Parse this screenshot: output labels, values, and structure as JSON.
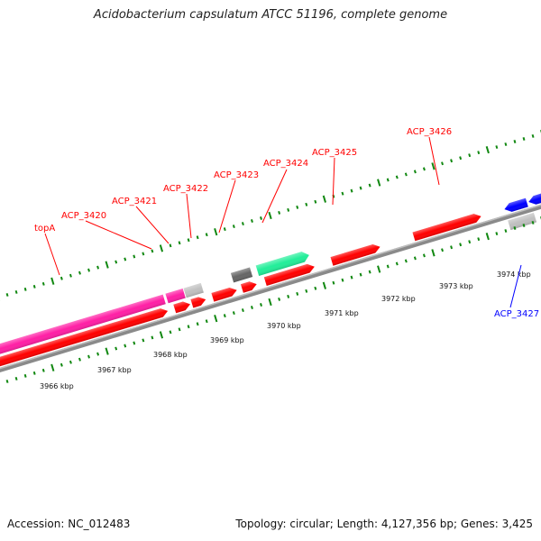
{
  "title": "Acidobacterium capsulatum ATCC 51196, complete genome",
  "accession": "Accession: NC_012483",
  "footer": "Topology: circular; Length: 4,127,356 bp; Genes: 3,425",
  "colors": {
    "forward": "#ff0000",
    "reverse": "#0000ff",
    "pink": "#ff1fa5",
    "green": "#22ee99",
    "gray": "#c0c0c0",
    "darkgray": "#666666",
    "backbone": "#8a8a8a",
    "ticks": "#118811"
  },
  "scale": {
    "unit": "kbp",
    "tick_labels": [
      "3966 kbp",
      "3967 kbp",
      "3968 kbp",
      "3969 kbp",
      "3970 kbp",
      "3971 kbp",
      "3972 kbp",
      "3973 kbp",
      "3974 kbp"
    ]
  },
  "genes": [
    {
      "id": "topA",
      "label": "topA",
      "color": "#ff1fa5",
      "label_color": "#ff0000"
    },
    {
      "id": "acp3420",
      "label": "ACP_3420",
      "color": "#ff1fa5",
      "label_color": "#ff0000"
    },
    {
      "id": "acp3421",
      "label": "ACP_3421",
      "color": "#c0c0c0",
      "label_color": "#ff0000"
    },
    {
      "id": "acp3422",
      "label": "ACP_3422",
      "color": "#ff0000",
      "label_color": "#ff0000"
    },
    {
      "id": "acp3423",
      "label": "ACP_3423",
      "color": "#666666",
      "label_color": "#ff0000"
    },
    {
      "id": "acp3424",
      "label": "ACP_3424",
      "color": "#22ee99",
      "label_color": "#ff0000"
    },
    {
      "id": "acp3425",
      "label": "ACP_3425",
      "color": "#ff0000",
      "label_color": "#ff0000"
    },
    {
      "id": "acp3426",
      "label": "ACP_3426",
      "color": "#ff0000",
      "label_color": "#ff0000"
    },
    {
      "id": "acp3427",
      "label": "ACP_3427",
      "color": "#0000ff",
      "label_color": "#0000ff"
    }
  ]
}
